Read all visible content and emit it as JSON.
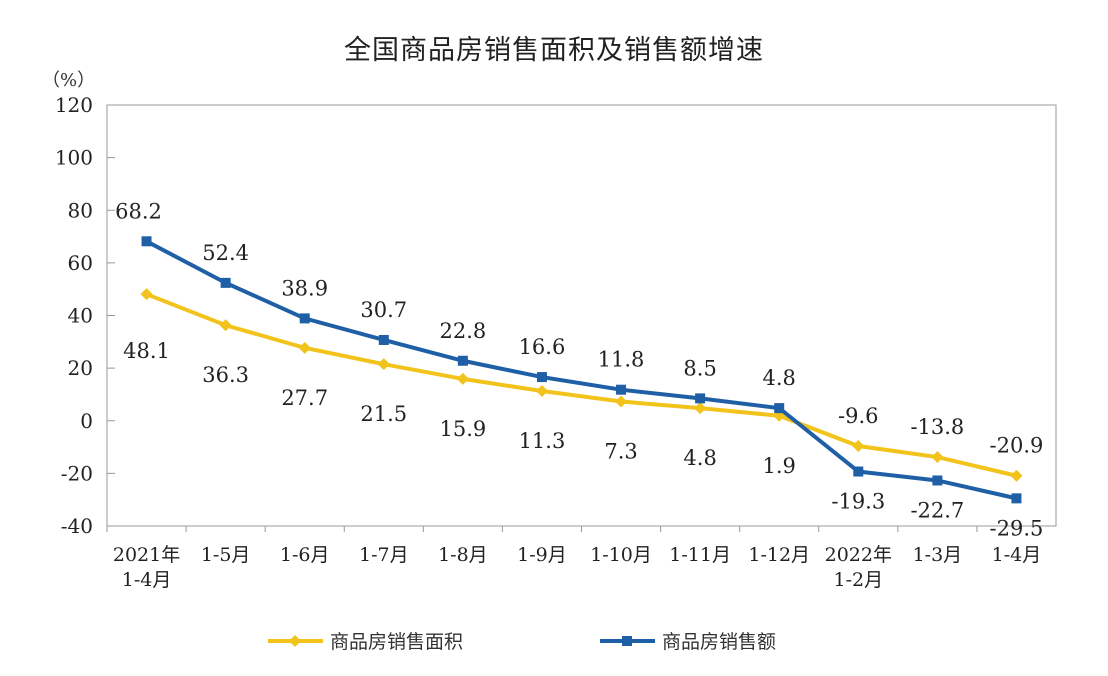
{
  "chart_data": {
    "type": "line",
    "title": "全国商品房销售面积及销售额增速",
    "ylabel": "（%）",
    "ylim": [
      -40,
      120
    ],
    "yticks": [
      -40,
      -20,
      0,
      20,
      40,
      60,
      80,
      100,
      120
    ],
    "categories": [
      [
        "2021年",
        "1-4月"
      ],
      [
        "1-5月"
      ],
      [
        "1-6月"
      ],
      [
        "1-7月"
      ],
      [
        "1-8月"
      ],
      [
        "1-9月"
      ],
      [
        "1-10月"
      ],
      [
        "1-11月"
      ],
      [
        "1-12月"
      ],
      [
        "2022年",
        "1-2月"
      ],
      [
        "1-3月"
      ],
      [
        "1-4月"
      ]
    ],
    "legend_position": "bottom",
    "grid": false,
    "series": [
      {
        "name": "商品房销售面积",
        "color": "#F2C31B",
        "marker": "diamond",
        "values": [
          48.1,
          36.3,
          27.7,
          21.5,
          15.9,
          11.3,
          7.3,
          4.8,
          1.9,
          -9.6,
          -13.8,
          -20.9
        ]
      },
      {
        "name": "商品房销售额",
        "color": "#1F5FA6",
        "marker": "square",
        "values": [
          68.2,
          52.4,
          38.9,
          30.7,
          22.8,
          16.6,
          11.8,
          8.5,
          4.8,
          -19.3,
          -22.7,
          -29.5
        ]
      }
    ]
  }
}
